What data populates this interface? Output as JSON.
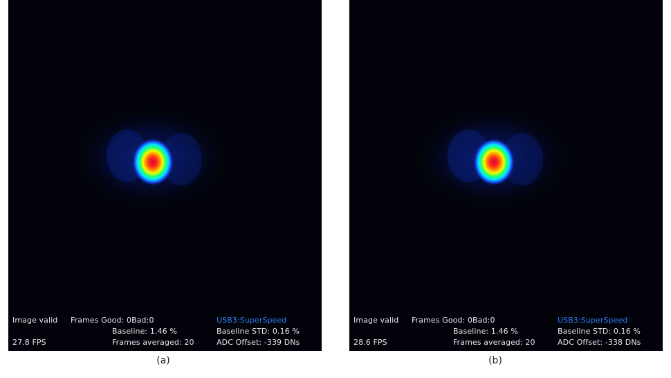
{
  "panels": [
    {
      "caption": "(a)",
      "status": {
        "image_valid": "Image valid",
        "fps": "27.8 FPS",
        "frames_good": "Frames Good: 0Bad:0",
        "baseline": "Baseline: 1.46 %",
        "frames_averaged": "Frames averaged: 20",
        "connection": "USB3:SuperSpeed",
        "baseline_std": "Baseline STD:  0.16 %",
        "adc_offset": "ADC Offset: -339 DNs"
      }
    },
    {
      "caption": "(b)",
      "status": {
        "image_valid": "Image valid",
        "fps": "28.6 FPS",
        "frames_good": "Frames Good: 0Bad:0",
        "baseline": "Baseline: 1.46 %",
        "frames_averaged": "Frames averaged: 20",
        "connection": "USB3:SuperSpeed",
        "baseline_std": "Baseline STD:  0.16 %",
        "adc_offset": "ADC Offset: -338 DNs"
      }
    }
  ],
  "colors": {
    "background": "#02030a",
    "status_text": "#e6e6e6",
    "connection_text": "#2f7df0"
  }
}
